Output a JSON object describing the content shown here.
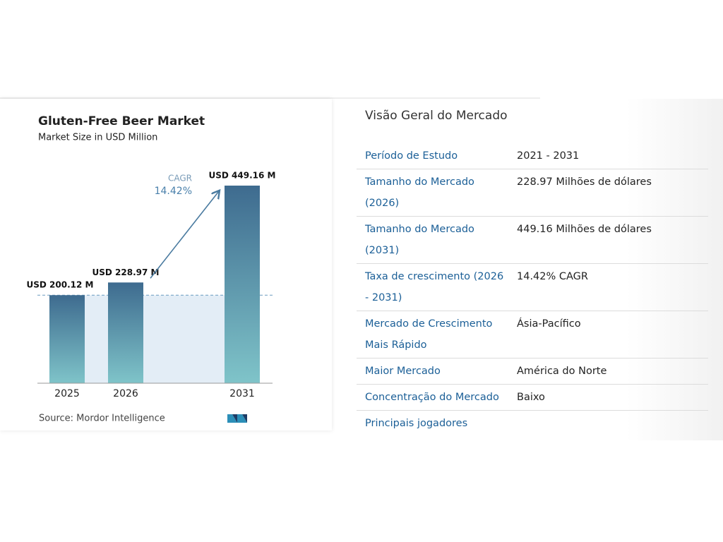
{
  "chart_data": {
    "type": "bar",
    "title": "Gluten-Free Beer Market",
    "subtitle": "Market Size in USD Million",
    "categories": [
      "2025",
      "2026",
      "2031"
    ],
    "values": [
      200.12,
      228.97,
      449.16
    ],
    "value_labels": [
      "USD 200.12 M",
      "USD 228.97 M",
      "USD 449.16 M"
    ],
    "cagr_label": "CAGR",
    "cagr_value": "14.42%",
    "source": "Source: Mordor Intelligence",
    "colors": [
      "#3e6b8f",
      "#7fc4c9"
    ]
  },
  "overview": {
    "title": "Visão Geral do Mercado",
    "rows": [
      [
        "Período de Estudo",
        "2021 - 2031"
      ],
      [
        "Tamanho do Mercado (2026)",
        "228.97 Milhões de dólares"
      ],
      [
        "Tamanho do Mercado (2031)",
        "449.16 Milhões de dólares"
      ],
      [
        "Taxa de crescimento (2026 - 2031)",
        "14.42% CAGR"
      ],
      [
        "Mercado de Crescimento Mais Rápido",
        "Ásia-Pacífico"
      ],
      [
        "Maior Mercado",
        "América do Norte"
      ],
      [
        "Concentração do Mercado",
        "Baixo"
      ],
      [
        "Principais jogadores"
      ]
    ]
  }
}
